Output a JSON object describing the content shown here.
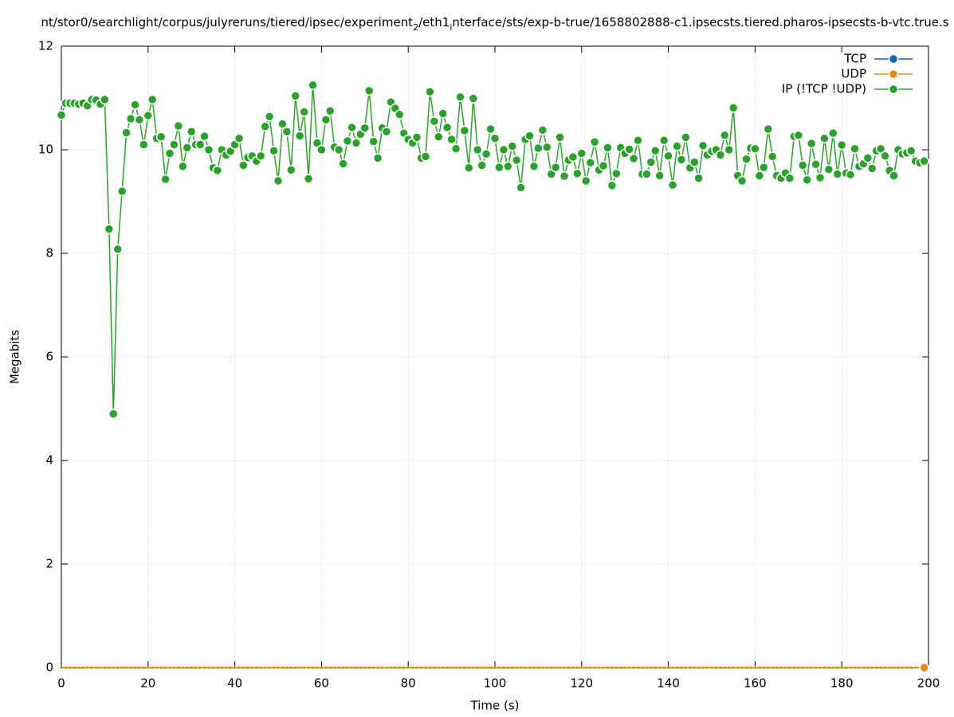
{
  "chart_data": {
    "type": "line",
    "title": [
      "nt/stor0/searchlight/corpus/julyreruns/tiered/ipsec/experiment",
      "2",
      "/eth1",
      "i",
      "nterface/sts/exp-b-true/1658802888-c1.ipsecsts.tiered.pharos-ipsecsts-b-vtc.true.s"
    ],
    "x_label": "Time (s)",
    "y_label": "Megabits",
    "xlim": [
      0,
      200
    ],
    "xticks": [
      0,
      20,
      40,
      60,
      80,
      100,
      120,
      140,
      160,
      180,
      200
    ],
    "ylim": [
      0,
      12
    ],
    "yticks": [
      0,
      2,
      4,
      6,
      8,
      10,
      12
    ],
    "grid": true,
    "legend": "top-right",
    "x": [
      0,
      1,
      2,
      3,
      4,
      5,
      6,
      7,
      8,
      9,
      10,
      11,
      12,
      13,
      14,
      15,
      16,
      17,
      18,
      19,
      20,
      21,
      22,
      23,
      24,
      25,
      26,
      27,
      28,
      29,
      30,
      31,
      32,
      33,
      34,
      35,
      36,
      37,
      38,
      39,
      40,
      41,
      42,
      43,
      44,
      45,
      46,
      47,
      48,
      49,
      50,
      51,
      52,
      53,
      54,
      55,
      56,
      57,
      58,
      59,
      60,
      61,
      62,
      63,
      64,
      65,
      66,
      67,
      68,
      69,
      70,
      71,
      72,
      73,
      74,
      75,
      76,
      77,
      78,
      79,
      80,
      81,
      82,
      83,
      84,
      85,
      86,
      87,
      88,
      89,
      90,
      91,
      92,
      93,
      94,
      95,
      96,
      97,
      98,
      99,
      100,
      101,
      102,
      103,
      104,
      105,
      106,
      107,
      108,
      109,
      110,
      111,
      112,
      113,
      114,
      115,
      116,
      117,
      118,
      119,
      120,
      121,
      122,
      123,
      124,
      125,
      126,
      127,
      128,
      129,
      130,
      131,
      132,
      133,
      134,
      135,
      136,
      137,
      138,
      139,
      140,
      141,
      142,
      143,
      144,
      145,
      146,
      147,
      148,
      149,
      150,
      151,
      152,
      153,
      154,
      155,
      156,
      157,
      158,
      159,
      160,
      161,
      162,
      163,
      164,
      165,
      166,
      167,
      168,
      169,
      170,
      171,
      172,
      173,
      174,
      175,
      176,
      177,
      178,
      179,
      180,
      181,
      182,
      183,
      184,
      185,
      186,
      187,
      188,
      189,
      190,
      191,
      192,
      193,
      194,
      195,
      196,
      197,
      198,
      199
    ],
    "series": [
      {
        "name": "TCP",
        "color": "#0b64b4",
        "values": [
          0,
          0,
          0,
          0,
          0,
          0,
          0,
          0,
          0,
          0,
          0,
          0,
          0,
          0,
          0,
          0,
          0,
          0,
          0,
          0,
          0,
          0,
          0,
          0,
          0,
          0,
          0,
          0,
          0,
          0,
          0,
          0,
          0,
          0,
          0,
          0,
          0,
          0,
          0,
          0,
          0,
          0,
          0,
          0,
          0,
          0,
          0,
          0,
          0,
          0,
          0,
          0,
          0,
          0,
          0,
          0,
          0,
          0,
          0,
          0,
          0,
          0,
          0,
          0,
          0,
          0,
          0,
          0,
          0,
          0,
          0,
          0,
          0,
          0,
          0,
          0,
          0,
          0,
          0,
          0,
          0,
          0,
          0,
          0,
          0,
          0,
          0,
          0,
          0,
          0,
          0,
          0,
          0,
          0,
          0,
          0,
          0,
          0,
          0,
          0,
          0,
          0,
          0,
          0,
          0,
          0,
          0,
          0,
          0,
          0,
          0,
          0,
          0,
          0,
          0,
          0,
          0,
          0,
          0,
          0,
          0,
          0,
          0,
          0,
          0,
          0,
          0,
          0,
          0,
          0,
          0,
          0,
          0,
          0,
          0,
          0,
          0,
          0,
          0,
          0,
          0,
          0,
          0,
          0,
          0,
          0,
          0,
          0,
          0,
          0,
          0,
          0,
          0,
          0,
          0,
          0,
          0,
          0,
          0,
          0,
          0,
          0,
          0,
          0,
          0,
          0,
          0,
          0,
          0,
          0,
          0,
          0,
          0,
          0,
          0,
          0,
          0,
          0,
          0,
          0,
          0,
          0,
          0,
          0,
          0,
          0,
          0,
          0,
          0,
          0,
          0,
          0,
          0,
          0,
          0,
          0,
          0,
          0,
          0,
          0
        ]
      },
      {
        "name": "UDP",
        "color": "#f28518",
        "values": [
          0,
          0,
          0,
          0,
          0,
          0,
          0,
          0,
          0,
          0,
          0,
          0,
          0,
          0,
          0,
          0,
          0,
          0,
          0,
          0,
          0,
          0,
          0,
          0,
          0,
          0,
          0,
          0,
          0,
          0,
          0,
          0,
          0,
          0,
          0,
          0,
          0,
          0,
          0,
          0,
          0,
          0,
          0,
          0,
          0,
          0,
          0,
          0,
          0,
          0,
          0,
          0,
          0,
          0,
          0,
          0,
          0,
          0,
          0,
          0,
          0,
          0,
          0,
          0,
          0,
          0,
          0,
          0,
          0,
          0,
          0,
          0,
          0,
          0,
          0,
          0,
          0,
          0,
          0,
          0,
          0,
          0,
          0,
          0,
          0,
          0,
          0,
          0,
          0,
          0,
          0,
          0,
          0,
          0,
          0,
          0,
          0,
          0,
          0,
          0,
          0,
          0,
          0,
          0,
          0,
          0,
          0,
          0,
          0,
          0,
          0,
          0,
          0,
          0,
          0,
          0,
          0,
          0,
          0,
          0,
          0,
          0,
          0,
          0,
          0,
          0,
          0,
          0,
          0,
          0,
          0,
          0,
          0,
          0,
          0,
          0,
          0,
          0,
          0,
          0,
          0,
          0,
          0,
          0,
          0,
          0,
          0,
          0,
          0,
          0,
          0,
          0,
          0,
          0,
          0,
          0,
          0,
          0,
          0,
          0,
          0,
          0,
          0,
          0,
          0,
          0,
          0,
          0,
          0,
          0,
          0,
          0,
          0,
          0,
          0,
          0,
          0,
          0,
          0,
          0,
          0,
          0,
          0,
          0,
          0,
          0,
          0,
          0,
          0,
          0,
          0,
          0,
          0,
          0,
          0,
          0,
          0,
          0,
          0,
          0
        ]
      },
      {
        "name": "IP (!TCP  !UDP)",
        "color": "#2ca02c",
        "values": [
          10.67,
          10.9,
          10.9,
          10.9,
          10.88,
          10.9,
          10.85,
          10.97,
          10.96,
          10.88,
          10.97,
          8.47,
          4.9,
          8.08,
          9.2,
          10.33,
          10.6,
          10.87,
          10.58,
          10.1,
          10.66,
          10.97,
          10.22,
          10.25,
          9.43,
          9.93,
          10.1,
          10.46,
          9.68,
          10.04,
          10.35,
          10.1,
          10.1,
          10.26,
          10.0,
          9.65,
          9.6,
          10.0,
          9.9,
          9.97,
          10.1,
          10.22,
          9.7,
          9.85,
          9.88,
          9.78,
          9.88,
          10.45,
          10.64,
          9.98,
          9.4,
          10.5,
          10.35,
          9.61,
          11.04,
          10.27,
          10.73,
          9.44,
          11.25,
          10.13,
          10.0,
          10.58,
          10.75,
          10.05,
          10.0,
          9.73,
          10.17,
          10.43,
          10.13,
          10.3,
          10.42,
          11.14,
          10.16,
          9.84,
          10.42,
          10.35,
          10.92,
          10.8,
          10.68,
          10.32,
          10.2,
          10.13,
          10.24,
          9.84,
          9.87,
          11.12,
          10.55,
          10.25,
          10.7,
          10.43,
          10.2,
          10.02,
          11.02,
          10.37,
          9.65,
          10.99,
          10.0,
          9.7,
          9.92,
          10.4,
          10.22,
          9.66,
          10.0,
          9.68,
          10.07,
          9.8,
          9.27,
          10.2,
          10.27,
          9.68,
          10.03,
          10.38,
          10.05,
          9.53,
          9.66,
          10.24,
          9.49,
          9.8,
          9.86,
          9.54,
          9.93,
          9.4,
          9.75,
          10.15,
          9.61,
          9.69,
          10.04,
          9.31,
          9.54,
          10.04,
          9.93,
          10.01,
          9.83,
          10.18,
          9.53,
          9.53,
          9.76,
          9.98,
          9.5,
          10.18,
          9.88,
          9.32,
          10.07,
          9.81,
          10.24,
          9.65,
          9.76,
          9.45,
          10.08,
          9.9,
          9.97,
          10.0,
          9.9,
          10.28,
          10.0,
          10.81,
          9.5,
          9.4,
          9.82,
          10.03,
          10.02,
          9.5,
          9.66,
          10.4,
          9.87,
          9.5,
          9.45,
          9.55,
          9.45,
          10.26,
          10.28,
          9.7,
          9.42,
          10.12,
          9.72,
          9.46,
          10.22,
          9.62,
          10.32,
          9.53,
          10.09,
          9.55,
          9.52,
          10.02,
          9.68,
          9.73,
          9.84,
          9.64,
          9.98,
          10.02,
          9.88,
          9.6,
          9.5,
          10.0,
          9.92,
          9.94,
          9.98,
          9.78,
          9.75,
          9.78
        ]
      }
    ]
  }
}
